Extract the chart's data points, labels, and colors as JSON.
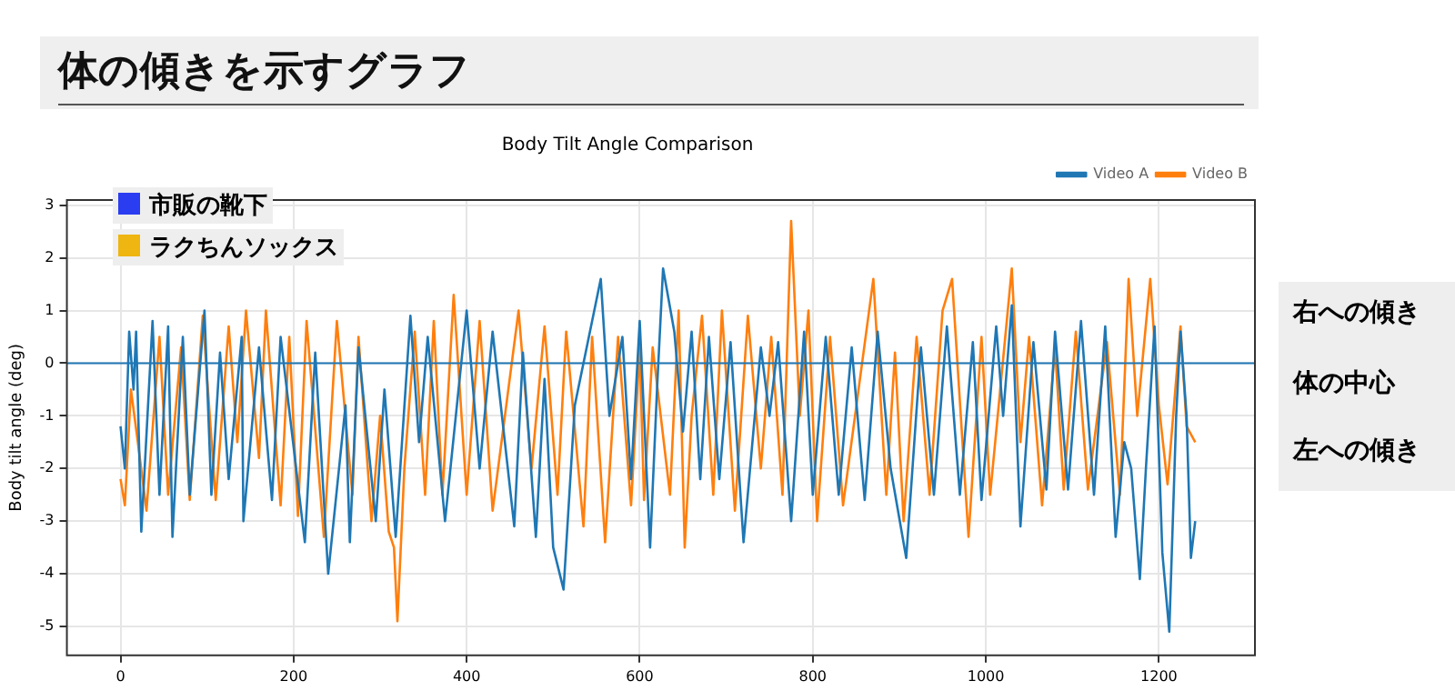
{
  "chart_data": {
    "type": "line",
    "title": "体の傾きを示すグラフ",
    "subtitle": "Body Tilt Angle Comparison",
    "ylabel": "Body tilt angle (deg)",
    "annotations": [
      "市販の靴下",
      "ラクちんソックス",
      "右への傾き",
      "体の中心",
      "左への傾き"
    ],
    "xlim": [
      -62,
      1311
    ],
    "xticks": [
      0,
      200,
      400,
      600,
      800,
      1000,
      1200
    ],
    "ylim": [
      -5.55,
      3.1
    ],
    "yticks": [
      -5,
      -4,
      -3,
      -2,
      -1,
      0,
      1,
      2,
      3
    ],
    "grid": true,
    "legend": "top right",
    "line_style": "solid",
    "marker": "none",
    "ref_lines": [
      {
        "axis": "y",
        "value": 0,
        "color": "#1f77b4"
      }
    ],
    "series": [
      {
        "name": "Video A",
        "color": "#1f77b4",
        "x": [
          0,
          5,
          10,
          15,
          18,
          24,
          37,
          45,
          55,
          60,
          72,
          80,
          97,
          105,
          115,
          125,
          140,
          142,
          160,
          175,
          185,
          213,
          225,
          240,
          260,
          265,
          275,
          295,
          305,
          318,
          335,
          345,
          355,
          375,
          400,
          415,
          430,
          455,
          465,
          480,
          490,
          500,
          512,
          525,
          555,
          565,
          580,
          590,
          600,
          612,
          620,
          627,
          640,
          650,
          660,
          670,
          680,
          692,
          705,
          720,
          740,
          750,
          760,
          775,
          790,
          800,
          815,
          830,
          845,
          860,
          875,
          890,
          908,
          925,
          940,
          955,
          970,
          985,
          995,
          1012,
          1020,
          1030,
          1040,
          1055,
          1070,
          1080,
          1095,
          1110,
          1125,
          1138,
          1150,
          1160,
          1168,
          1178,
          1185,
          1195,
          1204,
          1212,
          1220,
          1225,
          1232,
          1237,
          1242
        ],
        "values": [
          -1.2,
          -2,
          0.6,
          -0.5,
          0.6,
          -3.2,
          0.8,
          -2.5,
          0.7,
          -3.3,
          0.5,
          -2.5,
          1.0,
          -2.5,
          0.2,
          -2.2,
          0.5,
          -3.0,
          0.3,
          -2.6,
          0.5,
          -3.4,
          0.2,
          -4.0,
          -0.8,
          -3.4,
          0.3,
          -3.0,
          -0.5,
          -3.3,
          0.9,
          -1.5,
          0.5,
          -3.0,
          1.0,
          -2.0,
          0.6,
          -3.1,
          0.2,
          -3.3,
          -0.3,
          -3.5,
          -4.3,
          -0.8,
          1.6,
          -1.0,
          0.5,
          -2.2,
          0.8,
          -3.5,
          -0.5,
          1.8,
          0.6,
          -1.3,
          0.6,
          -2.2,
          0.5,
          -2.2,
          0.4,
          -3.4,
          0.3,
          -1.0,
          0.4,
          -3.0,
          0.6,
          -2.5,
          0.5,
          -2.5,
          0.3,
          -2.6,
          0.6,
          -2.0,
          -3.7,
          0.3,
          -2.5,
          0.7,
          -2.5,
          0.4,
          -2.6,
          0.7,
          -1.0,
          1.1,
          -3.1,
          0.4,
          -2.4,
          0.6,
          -2.4,
          0.8,
          -2.5,
          0.7,
          -3.3,
          -1.5,
          -2.0,
          -4.1,
          -2.0,
          0.7,
          -3.6,
          -5.1,
          -1.0,
          0.6,
          -1.0,
          -3.7,
          -3.0
        ]
      },
      {
        "name": "Video B",
        "color": "#ff7f0e",
        "x": [
          0,
          5,
          12,
          20,
          30,
          45,
          55,
          70,
          80,
          95,
          110,
          125,
          135,
          145,
          160,
          168,
          185,
          195,
          205,
          215,
          235,
          250,
          268,
          275,
          290,
          300,
          310,
          316,
          320,
          328,
          340,
          352,
          362,
          372,
          385,
          400,
          415,
          430,
          460,
          475,
          490,
          505,
          515,
          535,
          545,
          560,
          575,
          590,
          600,
          605,
          615,
          635,
          645,
          652,
          660,
          672,
          685,
          695,
          710,
          725,
          740,
          752,
          765,
          775,
          785,
          795,
          805,
          820,
          835,
          870,
          885,
          895,
          905,
          920,
          935,
          950,
          961,
          980,
          995,
          1005,
          1030,
          1040,
          1050,
          1065,
          1080,
          1090,
          1104,
          1118,
          1140,
          1155,
          1165,
          1175,
          1190,
          1200,
          1210,
          1225,
          1232,
          1242
        ],
        "values": [
          -2.2,
          -2.7,
          -0.5,
          -1.5,
          -2.8,
          0.5,
          -2.5,
          0.3,
          -2.6,
          0.9,
          -2.6,
          0.7,
          -1.5,
          1.0,
          -1.8,
          1.0,
          -2.7,
          0.5,
          -2.9,
          0.8,
          -3.3,
          0.8,
          -2.5,
          0.5,
          -3.0,
          -1.0,
          -3.2,
          -3.5,
          -4.9,
          -2.0,
          0.6,
          -2.5,
          0.8,
          -2.5,
          1.3,
          -2.5,
          0.8,
          -2.8,
          1.0,
          -2.0,
          0.7,
          -2.5,
          0.6,
          -3.1,
          0.5,
          -3.4,
          0.5,
          -2.7,
          0.3,
          -2.6,
          0.3,
          -2.5,
          1.0,
          -3.5,
          -1.0,
          0.9,
          -2.5,
          1.0,
          -2.8,
          0.9,
          -2.0,
          0.5,
          -2.5,
          2.7,
          -1.0,
          1.0,
          -3.0,
          0.5,
          -2.7,
          1.6,
          -2.5,
          0.2,
          -3.0,
          0.5,
          -2.5,
          1.0,
          1.6,
          -3.3,
          0.5,
          -2.5,
          1.8,
          -1.5,
          0.5,
          -2.7,
          0.3,
          -2.4,
          0.6,
          -2.4,
          0.4,
          -2.5,
          1.6,
          -1.0,
          1.6,
          -0.8,
          -2.3,
          0.7,
          -1.2,
          -1.5
        ]
      }
    ]
  }
}
